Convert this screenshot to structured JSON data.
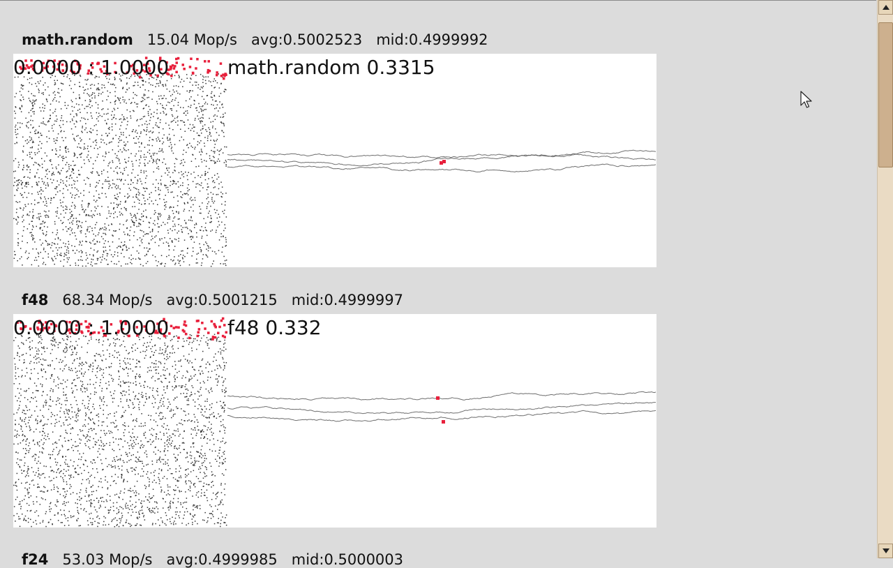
{
  "benchmarks": [
    {
      "name": "math.random",
      "speed": "15.04 Mop/s",
      "avg": "avg:0.5002523",
      "mid": "mid:0.4999992",
      "range_label": "0.0000 : 1.0000",
      "series_label": "math.random 0.3315"
    },
    {
      "name": "f48",
      "speed": "68.34 Mop/s",
      "avg": "avg:0.5001215",
      "mid": "mid:0.4999997",
      "range_label": "0.0000 : 1.0000",
      "series_label": "f48 0.332"
    },
    {
      "name": "f24",
      "speed": "53.03 Mop/s",
      "avg": "avg:0.4999985",
      "mid": "mid:0.5000003"
    }
  ],
  "colors": {
    "background": "#dcdcdc",
    "panel": "#ffffff",
    "highlight_points": "#e8203c",
    "scatter_points": "#333333",
    "walk_lines": "#555555"
  },
  "icons": {
    "scroll_up": "triangle-up-icon",
    "scroll_down": "triangle-down-icon",
    "cursor": "mouse-pointer-icon"
  }
}
